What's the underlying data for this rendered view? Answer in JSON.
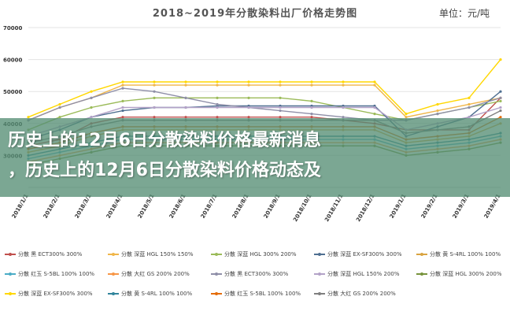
{
  "header": {
    "title": "2018~2019年分散染料出厂价格走势图",
    "unit": "单位：元/吨"
  },
  "overlay": {
    "line1": "历史上的12月6日分散染料价格最新消息",
    "line2": "，历史上的12月6日分散染料价格动态及"
  },
  "chart_data": {
    "type": "line",
    "title": "2018~2019年分散染料出厂价格走势图",
    "ylabel": "单位：元/吨",
    "ylim": [
      20000,
      70000
    ],
    "y_ticks": [
      "70000",
      "60000",
      "50000",
      "40000",
      "30000"
    ],
    "x": [
      "2018/1/1",
      "2018/2/1",
      "2018/3/1",
      "2018/4/1",
      "2018/5/1",
      "2018/6/1",
      "2018/7/1",
      "2018/8/1",
      "2018/9/1",
      "2018/10/1",
      "2018/11/1",
      "2018/12/1",
      "2019/1/1",
      "2019/2/1",
      "2019/3/1",
      "2019/4/1"
    ],
    "grid": true,
    "legend_position": "bottom",
    "series": [
      {
        "name": "分散 黑 ECT300% 300%",
        "color": "#c0504d",
        "values": [
          33000,
          35000,
          40000,
          42000,
          42000,
          42000,
          42000,
          42000,
          42000,
          42000,
          41000,
          40000,
          38000,
          38000,
          38000,
          48000
        ]
      },
      {
        "name": "分散 深蓝 HGL 150% 150%",
        "color": "#f0b64a",
        "values": [
          41000,
          45000,
          48000,
          52000,
          52000,
          52000,
          52000,
          52000,
          52000,
          52000,
          52000,
          52000,
          42000,
          44000,
          46000,
          48000
        ]
      },
      {
        "name": "分散 深蓝 HGL 300% 200%",
        "color": "#9bbb59",
        "values": [
          38000,
          42000,
          45000,
          47000,
          48000,
          48000,
          48000,
          48000,
          48000,
          47000,
          45000,
          43000,
          41000,
          43000,
          45000,
          47000
        ]
      },
      {
        "name": "分散 深蓝 EX-SF300% 300%",
        "color": "#4f6f91",
        "values": [
          35000,
          38000,
          42000,
          44000,
          45000,
          45000,
          45500,
          45500,
          45500,
          45500,
          45500,
          45500,
          36000,
          39000,
          42000,
          50000
        ]
      },
      {
        "name": "分散 黄 S-4RL 100% 100%",
        "color": "#d9a441",
        "values": [
          31000,
          33000,
          36000,
          38000,
          38000,
          38000,
          38000,
          38000,
          38000,
          38000,
          38000,
          38000,
          34000,
          35000,
          36000,
          40000
        ]
      },
      {
        "name": "分散 红玉 S-5BL 100% 100%",
        "color": "#4bacc6",
        "values": [
          29000,
          31000,
          33000,
          35000,
          35000,
          35000,
          35000,
          35000,
          35000,
          35000,
          35000,
          35000,
          32000,
          33000,
          34000,
          36000
        ]
      },
      {
        "name": "分散 大红 GS 200% 200%",
        "color": "#f79646",
        "values": [
          28000,
          30000,
          32000,
          34000,
          34000,
          34000,
          34000,
          34000,
          34000,
          34000,
          34000,
          34000,
          31000,
          32000,
          33000,
          35000
        ]
      },
      {
        "name": "分散 黑 ECT300% 300%",
        "color": "#8f8fa8",
        "values": [
          41000,
          45000,
          48000,
          51000,
          50000,
          48000,
          46000,
          45000,
          44000,
          43000,
          42000,
          41000,
          41000,
          43000,
          45000,
          48000
        ]
      },
      {
        "name": "分散 深蓝 HGL 150% 200%",
        "color": "#b3a2c7",
        "values": [
          36000,
          39000,
          42000,
          45000,
          45000,
          45000,
          45000,
          45000,
          45000,
          45000,
          45000,
          45000,
          38000,
          40000,
          42000,
          45000
        ]
      },
      {
        "name": "分散 深蓝 HGL 300% 200%",
        "color": "#77933c",
        "values": [
          27000,
          29000,
          31000,
          33000,
          33000,
          33000,
          33000,
          33000,
          33000,
          33000,
          33000,
          33000,
          30000,
          31000,
          32000,
          34000
        ]
      },
      {
        "name": "分散 深蓝 EX-SF300% 300%",
        "color": "#ffd700",
        "values": [
          42000,
          46000,
          50000,
          53000,
          53000,
          53000,
          53000,
          53000,
          53000,
          53000,
          53000,
          53000,
          43000,
          46000,
          48000,
          60000
        ]
      },
      {
        "name": "分散 黄 S-4RL 100% 100%",
        "color": "#31859c",
        "values": [
          30000,
          32000,
          34000,
          36000,
          36000,
          36000,
          36000,
          36000,
          36000,
          36000,
          36000,
          36000,
          33000,
          34000,
          35000,
          37000
        ]
      },
      {
        "name": "分散 红玉 S-5BL 100% 100%",
        "color": "#e46c0a",
        "values": [
          32000,
          34000,
          37000,
          39000,
          39000,
          39000,
          39000,
          39000,
          39000,
          39000,
          39000,
          39000,
          35000,
          36000,
          37000,
          42000
        ]
      },
      {
        "name": "分散 大红 GS 200% 200%",
        "color": "#7f7f7f",
        "values": [
          34000,
          36000,
          39000,
          41000,
          41000,
          41000,
          41000,
          41000,
          41000,
          41000,
          41000,
          41000,
          37000,
          38000,
          39000,
          44000
        ]
      }
    ]
  }
}
